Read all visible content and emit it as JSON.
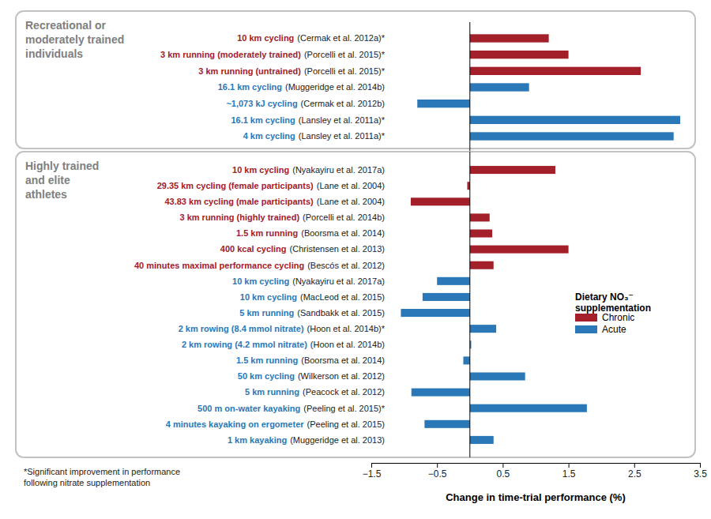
{
  "chart_data": {
    "type": "bar",
    "orientation": "horizontal",
    "groups": [
      {
        "title": "Recreational or\nmoderately trained\nindividuals",
        "categories": [
          "10 km cycling",
          "3 km running (moderately trained)",
          "3 km running (untrained)",
          "16.1 km cycling",
          "~1,073 kJ cycling",
          "16.1 km cycling",
          "4 km cycling"
        ],
        "citations": [
          "(Cermak et al. 2012a)*",
          "(Porcelli et al. 2015)*",
          "(Porcelli et al. 2015)*",
          "(Muggeridge et al. 2014b)",
          "(Cermak et al. 2012b)",
          "(Lansley et al. 2011a)*",
          "(Lansley et al. 2011a)*"
        ]
      },
      {
        "title": "Highly trained\nand elite\nathletes",
        "categories": [
          "10 km cycling",
          "29.35 km cycling (female participants)",
          "43.83 km cycling (male participants)",
          "3 km running (highly trained)",
          "1.5 km running",
          "400 kcal cycling",
          "40 minutes maximal performance cycling",
          "10 km cycling",
          "10 km cycling",
          "5 km running",
          "2 km rowing (8.4 mmol nitrate)",
          "2 km rowing (4.2 mmol nitrate)",
          "1.5 km running",
          "50 km cycling",
          "5 km running",
          "500 m on-water kayaking",
          "4 minutes kayaking on ergometer",
          "1 km kayaking"
        ],
        "citations": [
          "(Nyakayiru et al. 2017a)",
          "(Lane et al. 2004)",
          "(Lane et al. 2004)",
          "(Porcelli et al. 2014b)",
          "(Boorsma et al. 2014)",
          "(Christensen et al. 2013)",
          "(Bescós et al. 2012)",
          "(Nyakayiru et al. 2017a)",
          "(MacLeod et al. 2015)",
          "(Sandbakk et al. 2015)",
          "(Hoon et al. 2014b)*",
          "(Hoon et al. 2014b)",
          "(Boorsma et al. 2014)",
          "(Wilkerson et al. 2012)",
          "(Peacock et al. 2012)",
          "(Peeling et al. 2015)*",
          "(Peeling et al. 2015)",
          "(Muggeridge et al. 2013)"
        ]
      }
    ],
    "series": [
      {
        "name": "Chronic",
        "color": "#a3202b",
        "values": [
          1.2,
          1.5,
          2.6,
          null,
          null,
          null,
          null,
          1.3,
          -0.04,
          -0.9,
          0.3,
          0.34,
          1.5,
          0.36,
          null,
          null,
          null,
          null,
          null,
          null,
          null,
          null,
          null,
          null,
          null
        ]
      },
      {
        "name": "Acute",
        "color": "#2a78b8",
        "values": [
          null,
          null,
          null,
          0.9,
          -0.8,
          3.2,
          3.1,
          null,
          null,
          null,
          null,
          null,
          null,
          null,
          -0.5,
          -0.72,
          -1.05,
          0.4,
          0.02,
          -0.1,
          0.84,
          -0.89,
          1.78,
          -0.69,
          0.36
        ]
      }
    ],
    "xlim": [
      -1.5,
      3.5
    ],
    "xticks": [
      {
        "value": -1.5,
        "label": "−1.5"
      },
      {
        "value": -0.5,
        "label": "−0.5"
      },
      0.5,
      1.5,
      2.5,
      3.5
    ],
    "xlabel": "Change in time-trial performance (%)",
    "legend": "right",
    "legend_title": "Dietary NO₃⁻ supplementation",
    "note": "*Significant improvement in performance following nitrate supplementation"
  }
}
